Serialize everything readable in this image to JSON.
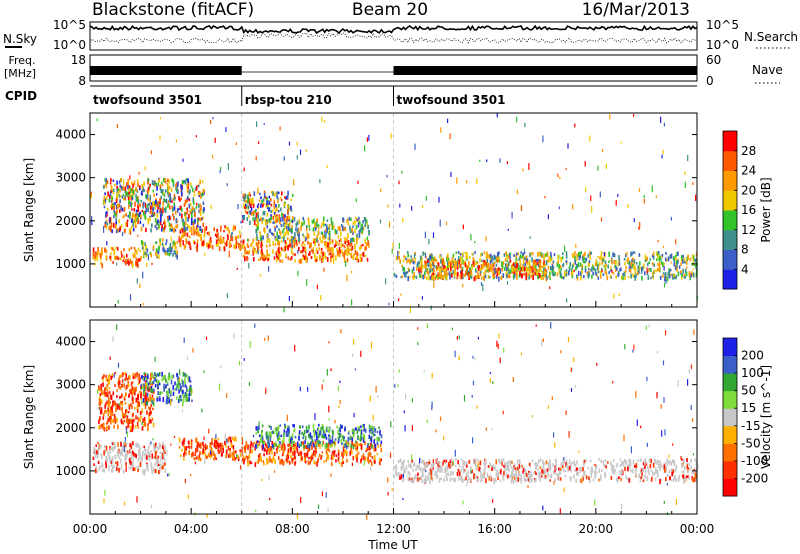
{
  "header": {
    "station": "Blackstone (fitACF)",
    "beam": "Beam 20",
    "date": "16/Mar/2013"
  },
  "noise_panel": {
    "left_label": "N.Sky",
    "right_label": "N.Search",
    "left_ticks": [
      "10^5",
      "10^0"
    ],
    "right_ticks": [
      "10^5",
      "10^0"
    ]
  },
  "freq_panel": {
    "left_label_1": "Freq.",
    "left_label_2": "[MHz]",
    "right_label": "Nave",
    "left_ticks": [
      "18",
      "8"
    ],
    "right_ticks": [
      "60",
      "0"
    ]
  },
  "cpid_panel": {
    "label": "CPID",
    "segments": [
      {
        "start_hour": 0,
        "end_hour": 6,
        "name": "twofsound 3501"
      },
      {
        "start_hour": 6,
        "end_hour": 12,
        "name": "rbsp-tou 210"
      },
      {
        "start_hour": 12,
        "end_hour": 24,
        "name": "twofsound 3501"
      }
    ]
  },
  "x_axis": {
    "label": "Time UT",
    "ticks": [
      "00:00",
      "04:00",
      "08:00",
      "12:00",
      "16:00",
      "20:00",
      "00:00"
    ]
  },
  "chart_data": [
    {
      "type": "heatmap",
      "quantity": "Power",
      "ylabel": "Slant Range [km]",
      "xlabel": "Time UT",
      "xlim_hours": [
        0,
        24
      ],
      "ylim": [
        0,
        4500
      ],
      "yticks": [
        1000,
        2000,
        3000,
        4000
      ],
      "colorbar": {
        "label": "Power [dB]",
        "ticks": [
          "4",
          "8",
          "12",
          "16",
          "20",
          "24",
          "28"
        ],
        "colors": [
          "#1e22e8",
          "#3b5fc8",
          "#3f8f8c",
          "#32c22a",
          "#f0c800",
          "#ff9a00",
          "#ff5a00",
          "#ff0000"
        ]
      },
      "echo_regions": [
        {
          "t0": 0.1,
          "t1": 2.0,
          "r0": 1000,
          "r1": 1400,
          "level": "high"
        },
        {
          "t0": 2.0,
          "t1": 3.5,
          "r0": 1200,
          "r1": 1600,
          "level": "mid"
        },
        {
          "t0": 3.5,
          "t1": 6.0,
          "r0": 1400,
          "r1": 1900,
          "level": "high"
        },
        {
          "t0": 6.0,
          "t1": 11.0,
          "r0": 1100,
          "r1": 1600,
          "level": "high"
        },
        {
          "t0": 6.5,
          "t1": 11.0,
          "r0": 1600,
          "r1": 2100,
          "level": "mid"
        },
        {
          "t0": 0.5,
          "t1": 4.5,
          "r0": 1800,
          "r1": 3000,
          "level": "mixed"
        },
        {
          "t0": 6.0,
          "t1": 8.0,
          "r0": 2000,
          "r1": 2700,
          "level": "mixed"
        },
        {
          "t0": 12.0,
          "t1": 24.0,
          "r0": 700,
          "r1": 1300,
          "level": "mid"
        },
        {
          "t0": 13.0,
          "t1": 18.0,
          "r0": 700,
          "r1": 1100,
          "level": "high"
        }
      ]
    },
    {
      "type": "heatmap",
      "quantity": "Velocity",
      "ylabel": "Slant Range [km]",
      "xlabel": "Time UT",
      "xlim_hours": [
        0,
        24
      ],
      "ylim": [
        0,
        4500
      ],
      "yticks": [
        1000,
        2000,
        3000,
        4000
      ],
      "colorbar": {
        "label": "Velocity [m s^-1]",
        "ticks": [
          "200",
          "100",
          "50",
          "15",
          "-15",
          "-50",
          "-100",
          "-200"
        ],
        "colors": [
          "#1e22e8",
          "#3b5fc8",
          "#32a832",
          "#7fdc3c",
          "#c8c8c8",
          "#ffb000",
          "#ff7000",
          "#ff3000",
          "#ff0000"
        ]
      },
      "echo_regions": [
        {
          "t0": 0.1,
          "t1": 3.0,
          "r0": 1000,
          "r1": 1700,
          "level": "ground"
        },
        {
          "t0": 0.3,
          "t1": 2.5,
          "r0": 2000,
          "r1": 3300,
          "level": "negative"
        },
        {
          "t0": 2.0,
          "t1": 4.0,
          "r0": 2600,
          "r1": 3300,
          "level": "positive"
        },
        {
          "t0": 3.5,
          "t1": 6.0,
          "r0": 1300,
          "r1": 1800,
          "level": "negative"
        },
        {
          "t0": 6.0,
          "t1": 11.5,
          "r0": 1200,
          "r1": 1700,
          "level": "negative"
        },
        {
          "t0": 6.5,
          "t1": 11.5,
          "r0": 1600,
          "r1": 2100,
          "level": "positive"
        },
        {
          "t0": 12.0,
          "t1": 24.0,
          "r0": 800,
          "r1": 1300,
          "level": "ground"
        }
      ]
    }
  ]
}
